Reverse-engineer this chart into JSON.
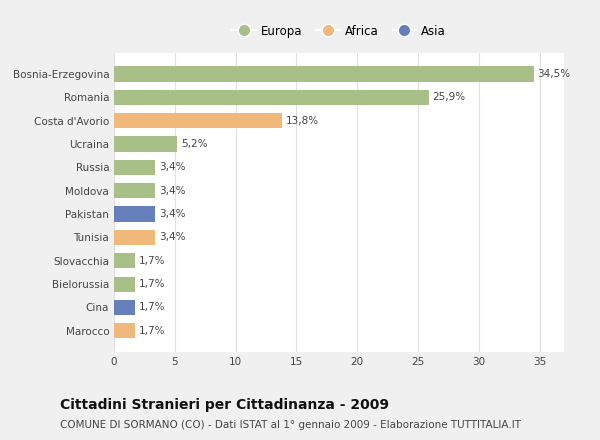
{
  "categories": [
    "Bosnia-Erzegovina",
    "Romania",
    "Costa d'Avorio",
    "Ucraina",
    "Russia",
    "Moldova",
    "Pakistan",
    "Tunisia",
    "Slovacchia",
    "Bielorussia",
    "Cina",
    "Marocco"
  ],
  "values": [
    34.5,
    25.9,
    13.8,
    5.2,
    3.4,
    3.4,
    3.4,
    3.4,
    1.7,
    1.7,
    1.7,
    1.7
  ],
  "labels": [
    "34,5%",
    "25,9%",
    "13,8%",
    "5,2%",
    "3,4%",
    "3,4%",
    "3,4%",
    "3,4%",
    "1,7%",
    "1,7%",
    "1,7%",
    "1,7%"
  ],
  "bar_colors": [
    "#a8bf88",
    "#a8bf88",
    "#f0b87a",
    "#a8bf88",
    "#a8bf88",
    "#a8bf88",
    "#6680bb",
    "#f0b87a",
    "#a8bf88",
    "#a8bf88",
    "#6680bb",
    "#f0b87a"
  ],
  "legend_labels": [
    "Europa",
    "Africa",
    "Asia"
  ],
  "legend_colors": [
    "#a8bf88",
    "#f0b87a",
    "#6680bb"
  ],
  "title": "Cittadini Stranieri per Cittadinanza - 2009",
  "subtitle": "COMUNE DI SORMANO (CO) - Dati ISTAT al 1° gennaio 2009 - Elaborazione TUTTITALIA.IT",
  "xlim": [
    0,
    37
  ],
  "xticks": [
    0,
    5,
    10,
    15,
    20,
    25,
    30,
    35
  ],
  "background_color": "#f0f0f0",
  "plot_background_color": "#ffffff",
  "grid_color": "#e0e0e0",
  "title_fontsize": 10,
  "subtitle_fontsize": 7.5,
  "label_fontsize": 7.5,
  "tick_fontsize": 7.5,
  "legend_fontsize": 8.5
}
